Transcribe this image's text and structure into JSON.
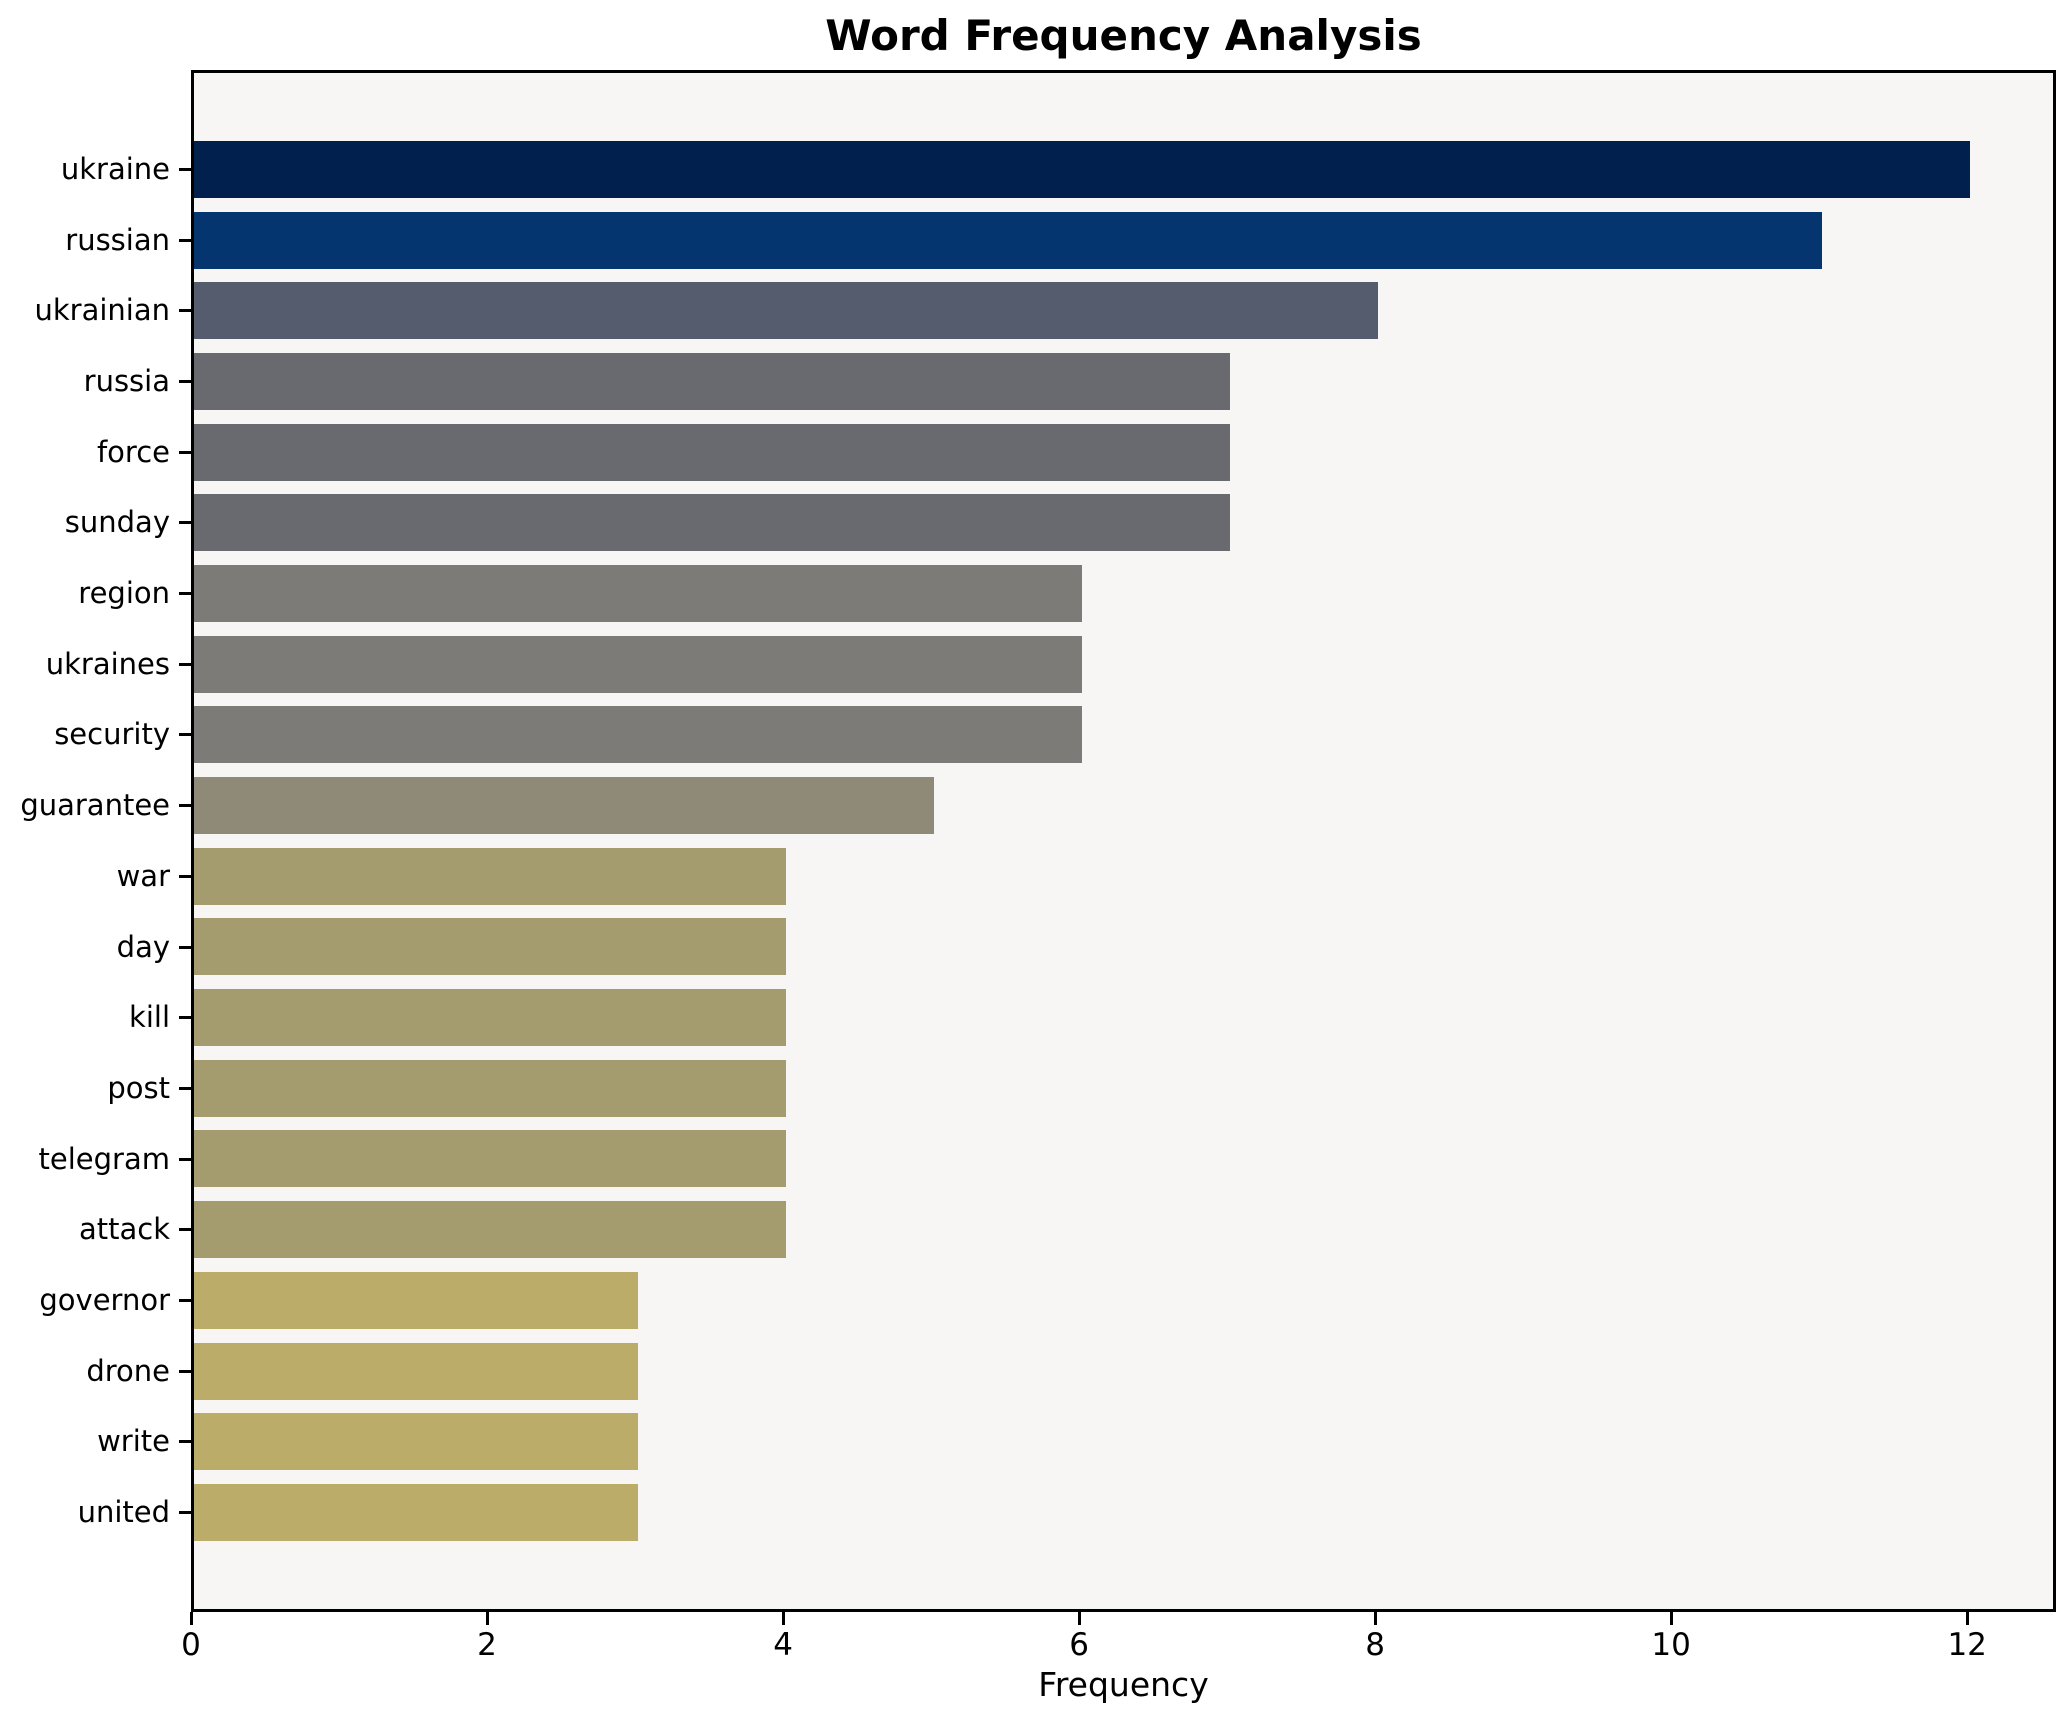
{
  "chart_data": {
    "type": "bar",
    "orientation": "horizontal",
    "title": "Word Frequency Analysis",
    "xlabel": "Frequency",
    "ylabel": "",
    "categories": [
      "ukraine",
      "russian",
      "ukrainian",
      "russia",
      "force",
      "sunday",
      "region",
      "ukraines",
      "security",
      "guarantee",
      "war",
      "day",
      "kill",
      "post",
      "telegram",
      "attack",
      "governor",
      "drone",
      "write",
      "united"
    ],
    "values": [
      12,
      11,
      8,
      7,
      7,
      7,
      6,
      6,
      6,
      5,
      4,
      4,
      4,
      4,
      4,
      4,
      3,
      3,
      3,
      3
    ],
    "bar_colors": [
      "#01204e",
      "#04356f",
      "#555c6d",
      "#696a70",
      "#696a70",
      "#696a70",
      "#7c7b77",
      "#7c7b77",
      "#7c7b77",
      "#8f8a78",
      "#a49b6f",
      "#a49b6f",
      "#a49b6f",
      "#a49b6f",
      "#a49b6f",
      "#a49b6f",
      "#bbac6a",
      "#bbac6a",
      "#bbac6a",
      "#bbac6a"
    ],
    "xticks": [
      "0",
      "2",
      "4",
      "6",
      "8",
      "10",
      "12"
    ],
    "xtick_values": [
      0,
      2,
      4,
      6,
      8,
      10,
      12
    ],
    "xlim": [
      0,
      12.6
    ],
    "grid": false,
    "legend_position": "none",
    "plot_background": "#f7f6f4",
    "figure_background": "#ffffff",
    "frame_color": "#000000",
    "text_color": "#000000"
  }
}
